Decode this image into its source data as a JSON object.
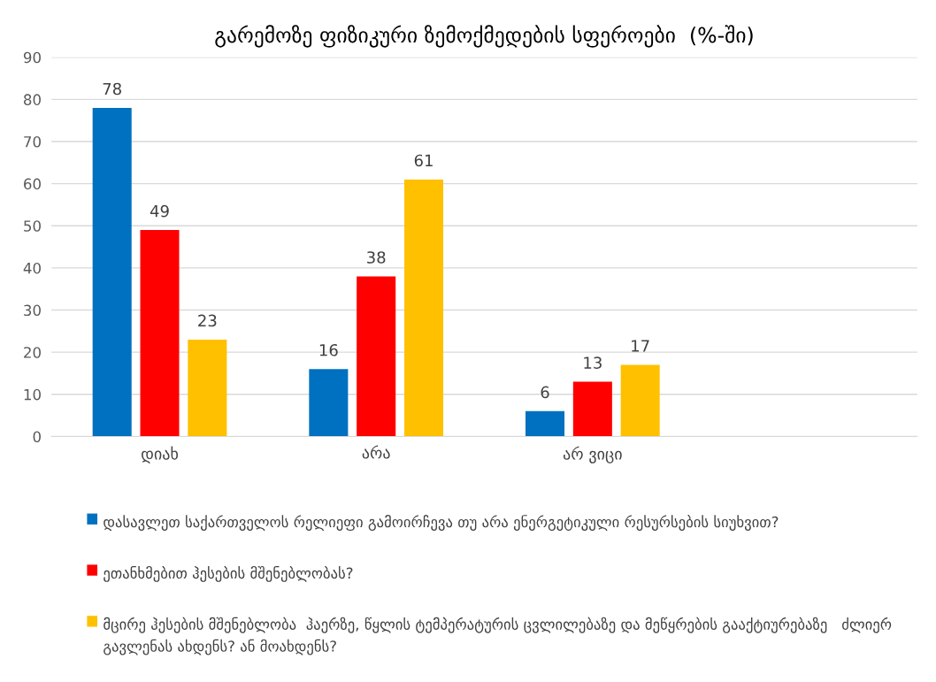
{
  "chart_data": {
    "type": "bar",
    "title": "გარემოზე ფიზიკური ზემოქმედების სფეროები  (%-ში)",
    "categories": [
      "დიახ",
      "არა",
      "არ ვიცი",
      null
    ],
    "series": [
      {
        "name": "დასავლეთ საქართველოს რელიეფი გამოირჩევა თუ არა ენერგეტიკული რესურსების სიუხვით?",
        "color": "#0070c0",
        "values": [
          78,
          16,
          6,
          null
        ]
      },
      {
        "name": "ეთანხმებით ჰესების მშენებლობას?",
        "color": "#ff0000",
        "values": [
          49,
          38,
          13,
          null
        ]
      },
      {
        "name": "მცირე ჰესების მშენებლობა  ჰაერზე, წყლის ტემპერატურის ცვლილებაზე და მეწყრების გააქტიურებაზე   ძლიერ გავლენას ახდენს? ან მოახდენს?",
        "color": "#ffc000",
        "values": [
          23,
          61,
          17,
          null
        ]
      }
    ],
    "ylim": [
      0,
      90
    ],
    "yticks": [
      0,
      10,
      20,
      30,
      40,
      50,
      60,
      70,
      80,
      90
    ],
    "grid": "y",
    "legend": "bottom",
    "data_labels": true
  }
}
